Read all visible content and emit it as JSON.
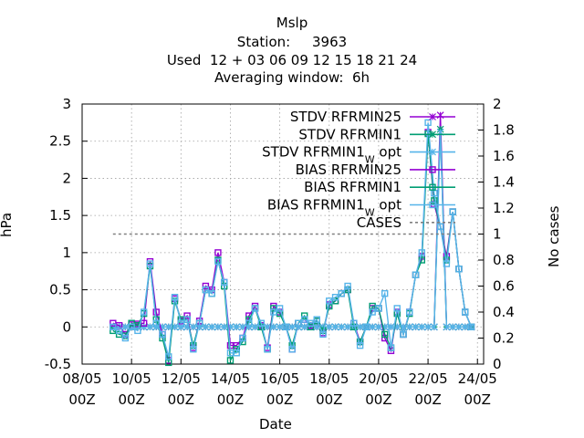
{
  "title": {
    "line1": "Mslp",
    "line2": "Station:     3963",
    "line3": "Used  12 + 03 06 09 12 15 18 21 24",
    "line4": "Averaging window:  6h"
  },
  "chart_data": {
    "type": "line",
    "xlabel": "Date",
    "ylabel": "hPa",
    "y2label": "No cases",
    "xlim": [
      "08/05 00Z",
      "24/05 06Z"
    ],
    "x_ticks": [
      {
        "x": "08/05 00Z",
        "line1": "08/05",
        "line2": "00Z"
      },
      {
        "x": "10/05 00Z",
        "line1": "10/05",
        "line2": "00Z"
      },
      {
        "x": "12/05 00Z",
        "line1": "12/05",
        "line2": "00Z"
      },
      {
        "x": "14/05 00Z",
        "line1": "14/05",
        "line2": "00Z"
      },
      {
        "x": "16/05 00Z",
        "line1": "16/05",
        "line2": "00Z"
      },
      {
        "x": "18/05 00Z",
        "line1": "18/05",
        "line2": "00Z"
      },
      {
        "x": "20/05 00Z",
        "line1": "20/05",
        "line2": "00Z"
      },
      {
        "x": "22/05 00Z",
        "line1": "22/05",
        "line2": "00Z"
      },
      {
        "x": "24/05 00Z",
        "line1": "24/05",
        "line2": "00Z"
      }
    ],
    "ylim": [
      -0.5,
      3
    ],
    "y_ticks": [
      "-0.5",
      "0",
      "0.5",
      "1",
      "1.5",
      "2",
      "2.5",
      "3"
    ],
    "y2lim": [
      0,
      2
    ],
    "y2_ticks": [
      "0",
      "0.2",
      "0.4",
      "0.6",
      "0.8",
      "1",
      "1.2",
      "1.4",
      "1.6",
      "1.8",
      "2"
    ],
    "grid": true,
    "legend_position": "top-right",
    "x_dates": [
      "09/05 06Z",
      "09/05 12Z",
      "09/05 18Z",
      "10/05 00Z",
      "10/05 06Z",
      "10/05 12Z",
      "10/05 18Z",
      "11/05 00Z",
      "11/05 06Z",
      "11/05 12Z",
      "11/05 18Z",
      "12/05 00Z",
      "12/05 06Z",
      "12/05 12Z",
      "12/05 18Z",
      "13/05 00Z",
      "13/05 06Z",
      "13/05 12Z",
      "13/05 18Z",
      "14/05 00Z",
      "14/05 06Z",
      "14/05 12Z",
      "14/05 18Z",
      "15/05 00Z",
      "15/05 06Z",
      "15/05 12Z",
      "15/05 18Z",
      "16/05 00Z",
      "16/05 06Z",
      "16/05 12Z",
      "16/05 18Z",
      "17/05 00Z",
      "17/05 06Z",
      "17/05 12Z",
      "17/05 18Z",
      "18/05 00Z",
      "18/05 06Z",
      "18/05 12Z",
      "18/05 18Z",
      "19/05 00Z",
      "19/05 06Z",
      "19/05 12Z",
      "19/05 18Z",
      "20/05 00Z",
      "20/05 06Z",
      "20/05 12Z",
      "20/05 18Z",
      "21/05 00Z",
      "21/05 06Z",
      "21/05 12Z",
      "21/05 18Z",
      "22/05 00Z",
      "22/05 06Z",
      "22/05 12Z",
      "22/05 18Z",
      "23/05 00Z",
      "23/05 06Z",
      "23/05 12Z",
      "23/05 18Z"
    ],
    "series": [
      {
        "name": "STDV RFRMIN25",
        "color": "#9400d3",
        "marker": "asterisk",
        "axis": "y",
        "values": [
          0,
          0,
          0,
          0,
          0,
          0,
          0,
          0,
          0,
          0,
          0,
          0,
          0,
          0,
          0,
          0,
          0,
          0,
          0,
          0,
          0,
          0,
          0,
          0,
          0,
          0,
          0,
          0,
          0,
          0,
          0,
          0,
          0,
          0,
          0,
          0,
          0,
          0,
          0,
          0,
          0,
          0,
          0,
          0,
          0,
          0,
          0,
          0,
          0,
          0,
          0,
          0,
          0,
          2.85,
          0,
          0,
          0,
          0,
          0
        ]
      },
      {
        "name": "STDV RFRMIN1",
        "color": "#009e73",
        "marker": "star",
        "axis": "y",
        "values": [
          0,
          0,
          0,
          0,
          0,
          0,
          0,
          0,
          0,
          0,
          0,
          0,
          0,
          0,
          0,
          0,
          0,
          0,
          0,
          0,
          0,
          0,
          0,
          0,
          0,
          0,
          0,
          0,
          0,
          0,
          0,
          0,
          0,
          0,
          0,
          0,
          0,
          0,
          0,
          0,
          0,
          0,
          0,
          0,
          0,
          0,
          0,
          0,
          0,
          0,
          0,
          0,
          0,
          2.66,
          0,
          0,
          0,
          0,
          0
        ]
      },
      {
        "name": "STDV RFRMIN1 W opt",
        "color": "#56b4e9",
        "marker": "asterisk",
        "axis": "y",
        "values": [
          0,
          0,
          0,
          0,
          0,
          0,
          0,
          0,
          0,
          0,
          0,
          0,
          0,
          0,
          0,
          0,
          0,
          0,
          0,
          0,
          0,
          0,
          0,
          0,
          0,
          0,
          0,
          0,
          0,
          0,
          0,
          0,
          0,
          0,
          0,
          0,
          0,
          0,
          0,
          0,
          0,
          0,
          0,
          0,
          0,
          0,
          0,
          0,
          0,
          0,
          0,
          0,
          0,
          2.62,
          0,
          0,
          0,
          0,
          0
        ]
      },
      {
        "name": "BIAS RFRMIN25",
        "color": "#9400d3",
        "marker": "square",
        "axis": "y",
        "values": [
          0.05,
          0.02,
          -0.1,
          0.03,
          0.04,
          0.05,
          0.88,
          0.2,
          -0.1,
          -0.45,
          0.38,
          0.08,
          0.15,
          -0.28,
          0.08,
          0.55,
          0.5,
          1.0,
          0.6,
          -0.25,
          -0.25,
          -0.15,
          0.15,
          0.28,
          0.02,
          -0.28,
          0.28,
          0.2,
          0.0,
          -0.3,
          0.05,
          0.1,
          0.02,
          0.08,
          -0.08,
          0.3,
          0.35,
          0.45,
          0.5,
          0.05,
          -0.2,
          0.0,
          0.25,
          0.25,
          -0.15,
          -0.32,
          0.2,
          -0.1,
          0.2,
          0.7,
          0.95,
          2.62,
          1.65,
          1.35,
          0.95,
          1.55,
          0.78,
          0.2,
          0.0
        ]
      },
      {
        "name": "BIAS RFRMIN1",
        "color": "#009e73",
        "marker": "square",
        "axis": "y",
        "values": [
          -0.05,
          -0.1,
          -0.12,
          0.05,
          0.02,
          0.18,
          0.82,
          0.1,
          -0.15,
          -0.48,
          0.35,
          0.1,
          0.1,
          -0.25,
          0.05,
          0.5,
          0.45,
          0.9,
          0.55,
          -0.45,
          -0.3,
          -0.2,
          0.1,
          0.25,
          0.0,
          -0.3,
          0.25,
          0.18,
          0.0,
          -0.25,
          0.05,
          0.15,
          0.0,
          0.08,
          -0.05,
          0.28,
          0.35,
          0.45,
          0.5,
          0.0,
          -0.2,
          0.0,
          0.28,
          0.25,
          -0.1,
          -0.28,
          0.18,
          -0.1,
          0.18,
          0.7,
          0.9,
          2.6,
          1.7,
          1.35,
          0.9,
          1.55,
          0.78,
          0.2,
          0.0
        ]
      },
      {
        "name": "BIAS RFRMIN1 W opt",
        "color": "#56b4e9",
        "marker": "square",
        "axis": "y",
        "values": [
          0.0,
          -0.05,
          -0.15,
          0.0,
          -0.05,
          0.2,
          0.85,
          0.05,
          -0.1,
          -0.4,
          0.4,
          0.05,
          0.1,
          -0.3,
          0.05,
          0.5,
          0.45,
          0.88,
          0.6,
          -0.35,
          -0.35,
          -0.15,
          0.05,
          0.25,
          0.05,
          -0.3,
          0.2,
          0.25,
          0.0,
          -0.3,
          0.05,
          0.1,
          0.05,
          0.1,
          -0.1,
          0.35,
          0.4,
          0.45,
          0.55,
          0.05,
          -0.25,
          0.0,
          0.2,
          0.25,
          0.45,
          -0.28,
          0.25,
          -0.1,
          0.2,
          0.7,
          1.0,
          2.75,
          1.8,
          1.35,
          0.85,
          1.55,
          0.78,
          0.2,
          0.0
        ]
      },
      {
        "name": "CASES",
        "color": "#808080",
        "marker": "none",
        "dashed": true,
        "axis": "y2",
        "values": [
          1,
          1,
          1,
          1,
          1,
          1,
          1,
          1,
          1,
          1,
          1,
          1,
          1,
          1,
          1,
          1,
          1,
          1,
          1,
          1,
          1,
          1,
          1,
          1,
          1,
          1,
          1,
          1,
          1,
          1,
          1,
          1,
          1,
          1,
          1,
          1,
          1,
          1,
          1,
          1,
          1,
          1,
          1,
          1,
          1,
          1,
          1,
          1,
          1,
          1,
          1,
          1,
          1,
          1,
          1,
          1,
          1,
          1,
          1
        ]
      }
    ],
    "legend": [
      {
        "label": "STDV RFRMIN25",
        "sub": "",
        "tail": "",
        "color": "#9400d3",
        "marker": "asterisk"
      },
      {
        "label": "STDV RFRMIN1",
        "sub": "",
        "tail": "",
        "color": "#009e73",
        "marker": "star"
      },
      {
        "label": "STDV RFRMIN1",
        "sub": "W",
        "tail": " opt",
        "color": "#56b4e9",
        "marker": "asterisk"
      },
      {
        "label": "BIAS RFRMIN25",
        "sub": "",
        "tail": "",
        "color": "#9400d3",
        "marker": "square"
      },
      {
        "label": "BIAS RFRMIN1",
        "sub": "",
        "tail": "",
        "color": "#009e73",
        "marker": "square"
      },
      {
        "label": "BIAS RFRMIN1",
        "sub": "W",
        "tail": " opt",
        "color": "#56b4e9",
        "marker": "square"
      },
      {
        "label": "CASES",
        "sub": "",
        "tail": "",
        "color": "#808080",
        "marker": "dash"
      }
    ]
  }
}
